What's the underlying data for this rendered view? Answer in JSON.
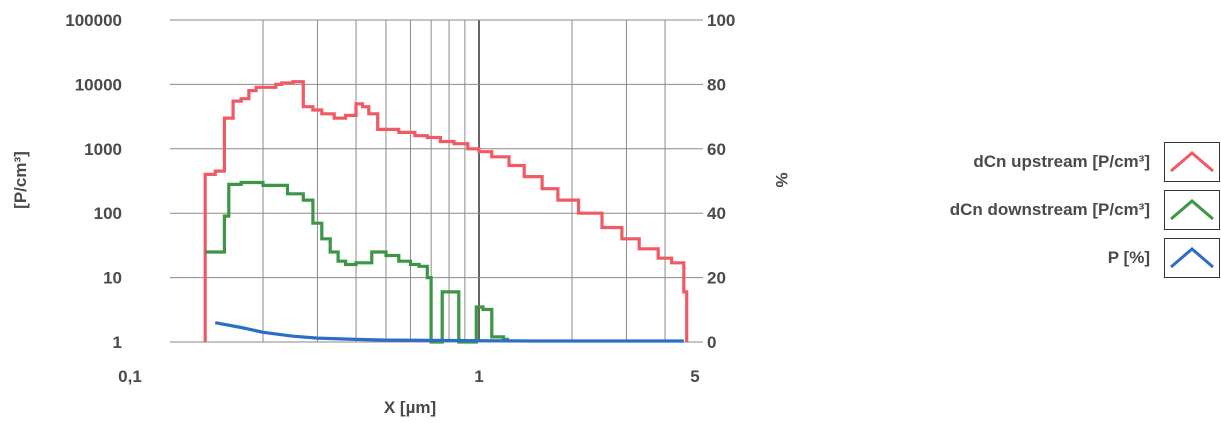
{
  "chart_data": {
    "type": "line",
    "xlabel": "X [µm]",
    "ylabel_left": "[P/cm³]",
    "ylabel_right": "%",
    "x_scale": "log",
    "xlim": [
      0.1,
      5
    ],
    "x_tick_labels": [
      "0,1",
      "1",
      "5"
    ],
    "y_left_scale": "log",
    "ylim_left": [
      1,
      100000
    ],
    "y_left_tick_labels": [
      "1",
      "10",
      "100",
      "1000",
      "10000",
      "100000"
    ],
    "ylim_right": [
      0,
      100
    ],
    "y_right_tick_labels": [
      "0",
      "20",
      "40",
      "60",
      "80",
      "100"
    ],
    "grid": true,
    "legend_position": "right",
    "series": [
      {
        "name": "dCn upstream [P/cm³]",
        "axis": "left",
        "color": "#f05a64",
        "x": [
          0.13,
          0.13,
          0.14,
          0.15,
          0.16,
          0.17,
          0.18,
          0.19,
          0.2,
          0.22,
          0.23,
          0.25,
          0.26,
          0.27,
          0.29,
          0.31,
          0.34,
          0.36,
          0.37,
          0.4,
          0.42,
          0.44,
          0.47,
          0.5,
          0.55,
          0.62,
          0.68,
          0.75,
          0.83,
          0.92,
          1.0,
          1.1,
          1.25,
          1.4,
          1.6,
          1.8,
          2.1,
          2.5,
          2.9,
          3.3,
          3.8,
          4.2,
          4.6,
          4.7
        ],
        "y": [
          1,
          400,
          450,
          3000,
          5500,
          6000,
          8000,
          9000,
          9000,
          10000,
          10500,
          11000,
          11000,
          4500,
          4000,
          3500,
          3000,
          3000,
          3300,
          5000,
          4500,
          3500,
          2000,
          2000,
          1800,
          1600,
          1500,
          1300,
          1200,
          1000,
          900,
          750,
          550,
          370,
          240,
          160,
          100,
          60,
          40,
          28,
          20,
          17,
          6,
          1
        ]
      },
      {
        "name": "dCn downstream [P/cm³]",
        "axis": "left",
        "color": "#3c9646",
        "x": [
          0.13,
          0.135,
          0.14,
          0.15,
          0.155,
          0.17,
          0.2,
          0.24,
          0.27,
          0.29,
          0.31,
          0.33,
          0.35,
          0.37,
          0.4,
          0.45,
          0.5,
          0.55,
          0.6,
          0.64,
          0.68,
          0.7,
          0.72,
          0.76,
          0.8,
          0.86,
          0.92,
          0.98,
          1.03,
          1.1,
          1.2,
          1.25
        ],
        "y": [
          25,
          25,
          25,
          90,
          280,
          300,
          270,
          200,
          160,
          70,
          40,
          25,
          18,
          16,
          17,
          25,
          22,
          18,
          16,
          15,
          10,
          1,
          1,
          6,
          6,
          1,
          1,
          3.5,
          3.2,
          1.2,
          1.1,
          1.1
        ]
      },
      {
        "name": "P [%]",
        "axis": "right",
        "color": "#2a6ec8",
        "x": [
          0.14,
          0.17,
          0.2,
          0.25,
          0.3,
          0.4,
          0.5,
          0.7,
          1.0,
          1.5,
          2.0,
          3.0,
          4.0,
          4.6
        ],
        "y": [
          6,
          4.5,
          3,
          1.8,
          1.2,
          0.8,
          0.6,
          0.5,
          0.4,
          0.3,
          0.3,
          0.3,
          0.3,
          0.3
        ]
      }
    ]
  },
  "legend": {
    "items": [
      {
        "label": "dCn upstream [P/cm³]",
        "icon": "line-chart-red-icon",
        "color": "#f05a64"
      },
      {
        "label": "dCn downstream [P/cm³]",
        "icon": "line-chart-green-icon",
        "color": "#3c9646"
      },
      {
        "label": "P [%]",
        "icon": "line-chart-blue-icon",
        "color": "#2a6ec8"
      }
    ]
  }
}
